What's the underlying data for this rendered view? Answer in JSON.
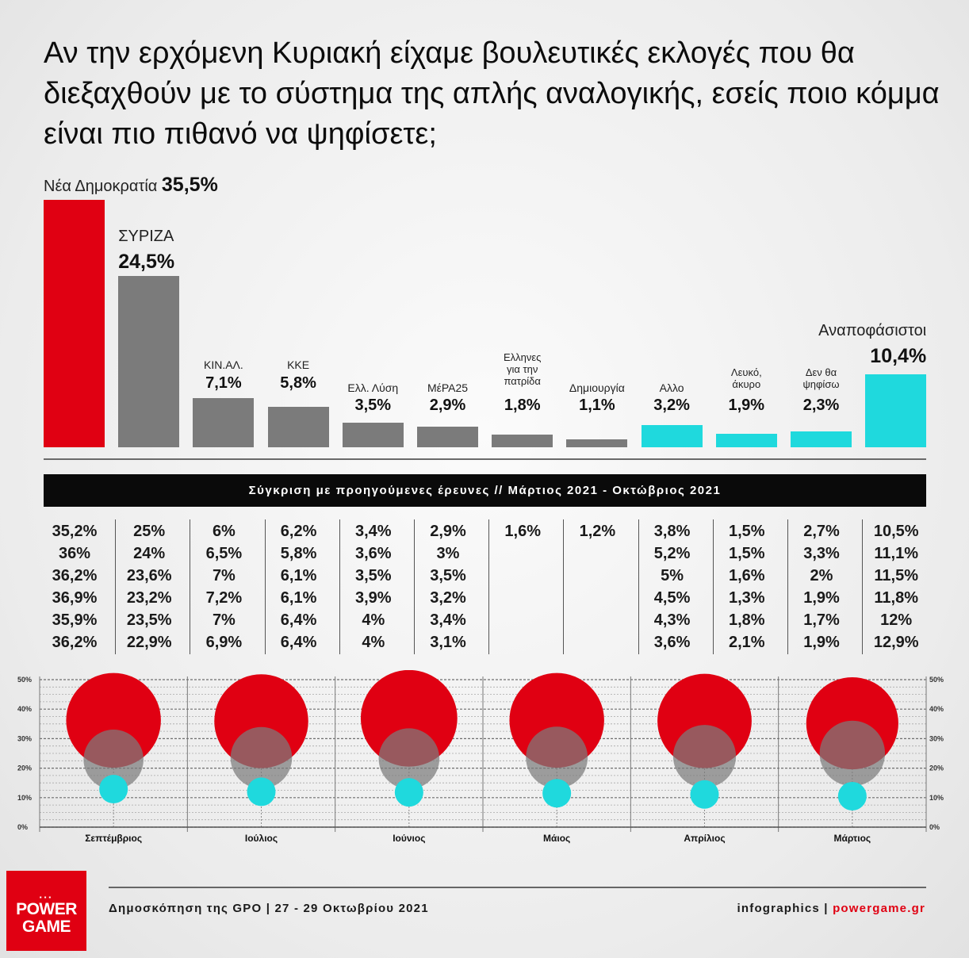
{
  "title": "Αν την ερχόμενη Κυριακή είχαμε βουλευτικές εκλογές που θα διεξαχθούν με το σύστημα της απλής αναλογικής, εσείς ποιο κόμμα είναι πιο πιθανό να ψηφίσετε;",
  "colors": {
    "red": "#e00012",
    "gray": "#7b7b7b",
    "cyan": "#1fd9dd"
  },
  "chart_data": [
    {
      "type": "bar",
      "categories": [
        "Νέα Δημοκρατία",
        "ΣΥΡΙΖΑ",
        "ΚΙΝ.ΑΛ.",
        "ΚΚΕ",
        "Ελλ. Λύση",
        "ΜέΡΑ25",
        "Ελληνες για την πατρίδα",
        "Δημιουργία",
        "Αλλο",
        "Λευκό, άκυρο",
        "Δεν θα ψηφίσω",
        "Αναποφάσιστοι"
      ],
      "values": [
        35.5,
        24.5,
        7.1,
        5.8,
        3.5,
        2.9,
        1.8,
        1.1,
        3.2,
        1.9,
        2.3,
        10.4
      ],
      "value_labels": [
        "35,5%",
        "24,5%",
        "7,1%",
        "5,8%",
        "3,5%",
        "2,9%",
        "1,8%",
        "1,1%",
        "3,2%",
        "1,9%",
        "2,3%",
        "10,4%"
      ],
      "bar_colors": [
        "red",
        "gray",
        "gray",
        "gray",
        "gray",
        "gray",
        "gray",
        "gray",
        "cyan",
        "cyan",
        "cyan",
        "cyan"
      ]
    },
    {
      "type": "table",
      "title": "Σύγκριση με προηγούμενες έρευνες // Μάρτιος 2021 - Οκτώβριος 2021",
      "columns": [
        [
          "35,2%",
          "36%",
          "36,2%",
          "36,9%",
          "35,9%",
          "36,2%"
        ],
        [
          "25%",
          "24%",
          "23,6%",
          "23,2%",
          "23,5%",
          "22,9%"
        ],
        [
          "6%",
          "6,5%",
          "7%",
          "7,2%",
          "7%",
          "6,9%"
        ],
        [
          "6,2%",
          "5,8%",
          "6,1%",
          "6,1%",
          "6,4%",
          "6,4%"
        ],
        [
          "3,4%",
          "3,6%",
          "3,5%",
          "3,9%",
          "4%",
          "4%"
        ],
        [
          "2,9%",
          "3%",
          "3,5%",
          "3,2%",
          "3,4%",
          "3,1%"
        ],
        [
          "1,6%",
          "",
          "",
          "",
          "",
          ""
        ],
        [
          "1,2%",
          "",
          "",
          "",
          "",
          ""
        ],
        [
          "3,8%",
          "5,2%",
          "5%",
          "4,5%",
          "4,3%",
          "3,6%"
        ],
        [
          "1,5%",
          "1,5%",
          "1,6%",
          "1,3%",
          "1,8%",
          "2,1%"
        ],
        [
          "2,7%",
          "3,3%",
          "2%",
          "1,9%",
          "1,7%",
          "1,9%"
        ],
        [
          "10,5%",
          "11,1%",
          "11,5%",
          "11,8%",
          "12%",
          "12,9%"
        ]
      ]
    },
    {
      "type": "scatter",
      "categories": [
        "Σεπτέμβριος",
        "Ιούλιος",
        "Ιούνιος",
        "Μάιος",
        "Απρίλιος",
        "Μάρτιος"
      ],
      "y_ticks": [
        "50%",
        "40%",
        "30%",
        "20%",
        "10%",
        "0%"
      ],
      "ylim": [
        0,
        50
      ],
      "series": [
        {
          "color": "red",
          "values": [
            36.2,
            35.9,
            36.9,
            36.2,
            36,
            35.2
          ]
        },
        {
          "color": "gray",
          "values": [
            22.9,
            23.5,
            23.2,
            23.6,
            24,
            25
          ]
        },
        {
          "color": "cyan",
          "values": [
            12.9,
            12,
            11.8,
            11.5,
            11.1,
            10.5
          ]
        }
      ]
    }
  ],
  "footer": {
    "logo_line1": "POWER",
    "logo_line2": "GAME",
    "source": "Δημοσκόπηση της GPO | 27 - 29 Οκτωβρίου 2021",
    "credit_prefix": "infographics | ",
    "credit_site": "powergame.gr"
  }
}
